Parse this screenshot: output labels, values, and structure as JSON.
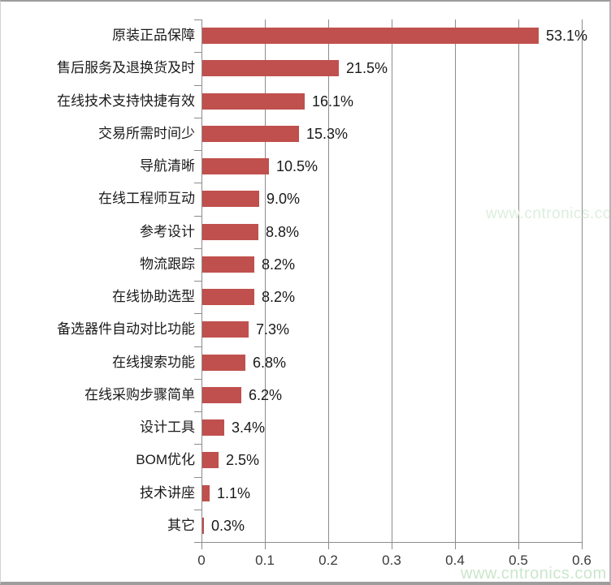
{
  "watermark": {
    "text": "www.cntronics.com",
    "color_middle": "#ddeedd",
    "color_bottom": "#cbe6cb"
  },
  "chart_data": {
    "type": "bar",
    "orientation": "horizontal",
    "title": "",
    "xlabel": "",
    "ylabel": "",
    "categories": [
      "原装正品保障",
      "售后服务及退换货及时",
      "在线技术支持快捷有效",
      "交易所需时间少",
      "导航清晰",
      "在线工程师互动",
      "参考设计",
      "物流跟踪",
      "在线协助选型",
      "备选器件自动对比功能",
      "在线搜索功能",
      "在线采购步骤简单",
      "设计工具",
      "BOM优化",
      "技术讲座",
      "其它"
    ],
    "values": [
      0.531,
      0.215,
      0.161,
      0.153,
      0.105,
      0.09,
      0.088,
      0.082,
      0.082,
      0.073,
      0.068,
      0.062,
      0.034,
      0.025,
      0.011,
      0.003
    ],
    "value_labels": [
      "53.1%",
      "21.5%",
      "16.1%",
      "15.3%",
      "10.5%",
      "9.0%",
      "8.8%",
      "8.2%",
      "8.2%",
      "7.3%",
      "6.8%",
      "6.2%",
      "3.4%",
      "2.5%",
      "1.1%",
      "0.3%"
    ],
    "xlim": [
      0,
      0.6
    ],
    "xticks": [
      0,
      0.1,
      0.2,
      0.3,
      0.4,
      0.5,
      0.6
    ],
    "xtick_labels": [
      "0",
      "0.1",
      "0.2",
      "0.3",
      "0.4",
      "0.5",
      "0.6"
    ],
    "grid": true,
    "legend": false,
    "bar_color": "#c0504d",
    "axis_color": "#8c8c8c",
    "label_color": "#1a1a1a"
  }
}
